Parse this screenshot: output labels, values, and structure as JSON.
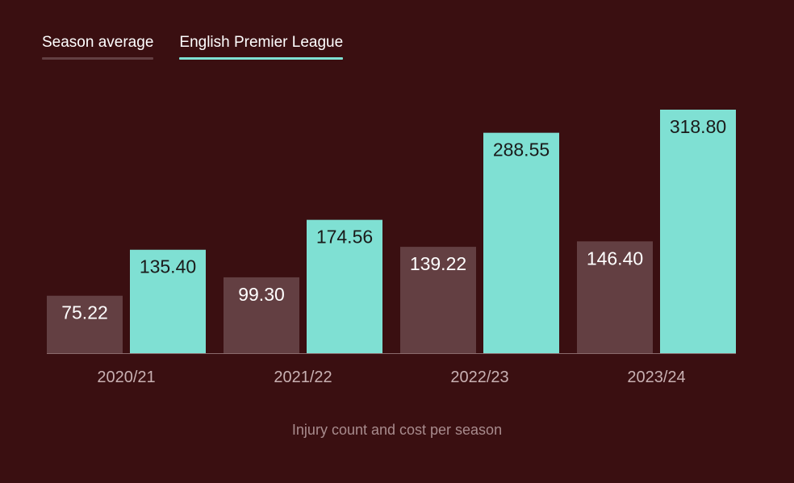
{
  "legend": {
    "items": [
      {
        "label": "Season average",
        "color": "#633f42",
        "series": 0
      },
      {
        "label": "English Premier League",
        "color": "#7fe0d3",
        "series": 1
      }
    ]
  },
  "caption": "Injury count and cost per season",
  "colors": {
    "background": "#3a0f11",
    "season_avg": "#633f42",
    "epl": "#7fe0d3",
    "label_on_dark": "#ffffff",
    "label_on_light": "#1a1a1a",
    "tick_text": "#c8b0b2",
    "axis": "#8a6a6c"
  },
  "chart_data": {
    "type": "bar",
    "categories": [
      "2020/21",
      "2021/22",
      "2022/23",
      "2023/24"
    ],
    "series": [
      {
        "name": "Season average",
        "values": [
          75.22,
          99.3,
          139.22,
          146.4
        ],
        "labels": [
          "75.22",
          "99.30",
          "139.22",
          "146.40"
        ]
      },
      {
        "name": "English Premier League",
        "values": [
          135.4,
          174.56,
          288.55,
          318.8
        ],
        "labels": [
          "135.40",
          "174.56",
          "288.55",
          "318.80"
        ]
      }
    ],
    "title": "",
    "xlabel": "Injury count and cost per season",
    "ylabel": "",
    "ylim": [
      0,
      318.8
    ],
    "legend_position": "top-left",
    "grid": false
  }
}
